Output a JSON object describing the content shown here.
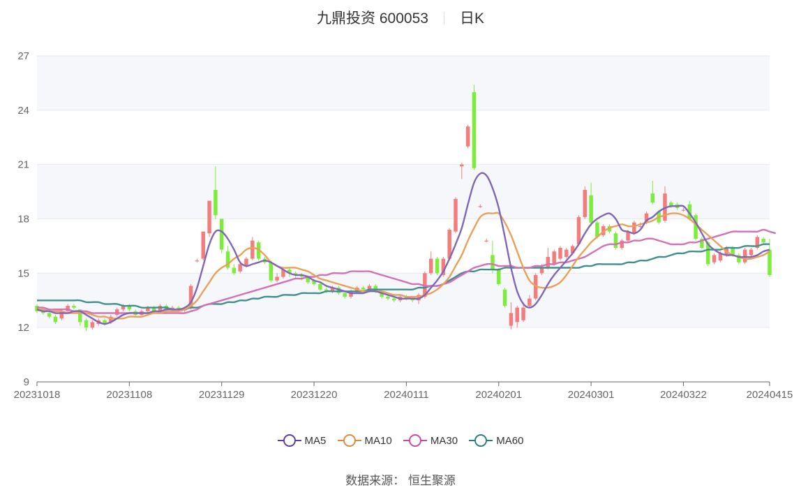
{
  "title": {
    "name": "九鼎投资 600053",
    "period": "日K"
  },
  "source": "数据来源：  恒生聚源",
  "colors": {
    "up": "#f47c7c",
    "down": "#7ced3a",
    "ma5": "#7f66b7",
    "ma10": "#e8a159",
    "ma30": "#d370b8",
    "ma60": "#3f8f8e"
  },
  "legend": [
    {
      "name": "MA5",
      "color": "#5b3ea8"
    },
    {
      "name": "MA10",
      "color": "#e08a3c"
    },
    {
      "name": "MA30",
      "color": "#c94aa6"
    },
    {
      "name": "MA60",
      "color": "#2e7d7c"
    }
  ],
  "chart_data": {
    "type": "candlestick",
    "ylim": [
      9,
      27
    ],
    "yticks": [
      "9",
      "12",
      "15",
      "18",
      "21",
      "24",
      "27"
    ],
    "xtick_labels": [
      {
        "label": "20231018",
        "index": 0
      },
      {
        "label": "20231108",
        "index": 15
      },
      {
        "label": "20231129",
        "index": 30
      },
      {
        "label": "20231220",
        "index": 45
      },
      {
        "label": "20240111",
        "index": 60
      },
      {
        "label": "20240201",
        "index": 75
      },
      {
        "label": "20240301",
        "index": 90
      },
      {
        "label": "20240322",
        "index": 105
      },
      {
        "label": "20240415",
        "index": 119
      }
    ],
    "grid": true,
    "legend_position": "bottom",
    "candles": [
      [
        13.2,
        12.9,
        13.3,
        12.8
      ],
      [
        12.9,
        12.8,
        13.0,
        12.7
      ],
      [
        12.8,
        12.6,
        12.9,
        12.5
      ],
      [
        12.6,
        12.3,
        12.7,
        12.2
      ],
      [
        12.5,
        12.9,
        13.0,
        12.4
      ],
      [
        12.9,
        13.2,
        13.3,
        12.8
      ],
      [
        13.2,
        13.1,
        13.3,
        13.0
      ],
      [
        13.0,
        12.3,
        13.0,
        12.1
      ],
      [
        12.4,
        12.0,
        12.5,
        11.8
      ],
      [
        12.0,
        12.3,
        12.4,
        11.9
      ],
      [
        12.2,
        12.4,
        12.5,
        12.1
      ],
      [
        12.4,
        12.2,
        12.5,
        12.1
      ],
      [
        12.3,
        12.6,
        12.7,
        12.2
      ],
      [
        12.7,
        13.0,
        13.1,
        12.6
      ],
      [
        13.0,
        13.2,
        13.3,
        12.9
      ],
      [
        13.2,
        13.0,
        13.3,
        12.9
      ],
      [
        12.9,
        12.7,
        13.0,
        12.6
      ],
      [
        12.7,
        12.9,
        13.0,
        12.6
      ],
      [
        12.9,
        13.1,
        13.2,
        12.8
      ],
      [
        13.1,
        12.9,
        13.2,
        12.8
      ],
      [
        12.9,
        13.2,
        13.3,
        12.8
      ],
      [
        13.2,
        13.0,
        13.3,
        12.9
      ],
      [
        13.0,
        13.1,
        13.2,
        12.9
      ],
      [
        13.1,
        13.0,
        13.2,
        12.9
      ],
      [
        13.0,
        13.0,
        13.1,
        12.8
      ],
      [
        13.1,
        14.3,
        14.4,
        13.0
      ],
      [
        15.7,
        15.7,
        15.8,
        15.6
      ],
      [
        15.8,
        17.3,
        17.3,
        15.7
      ],
      [
        17.2,
        19.0,
        19.0,
        17.0
      ],
      [
        19.6,
        18.2,
        20.9,
        18.0
      ],
      [
        18.0,
        16.3,
        18.0,
        16.1
      ],
      [
        16.2,
        15.3,
        16.5,
        15.2
      ],
      [
        15.3,
        15.0,
        15.5,
        14.9
      ],
      [
        15.1,
        15.5,
        15.6,
        15.0
      ],
      [
        15.4,
        15.8,
        15.9,
        15.3
      ],
      [
        15.8,
        16.8,
        17.0,
        15.7
      ],
      [
        16.7,
        15.8,
        16.8,
        15.7
      ],
      [
        15.8,
        15.6,
        15.9,
        15.5
      ],
      [
        15.6,
        14.6,
        15.7,
        14.5
      ],
      [
        14.6,
        14.8,
        15.0,
        14.5
      ],
      [
        14.8,
        15.2,
        15.3,
        14.7
      ],
      [
        15.2,
        15.0,
        15.3,
        14.8
      ],
      [
        15.0,
        14.9,
        15.1,
        14.7
      ],
      [
        14.9,
        14.8,
        15.0,
        14.6
      ],
      [
        14.8,
        14.5,
        14.9,
        14.4
      ],
      [
        14.6,
        14.4,
        14.7,
        14.3
      ],
      [
        14.4,
        14.1,
        14.5,
        14.0
      ],
      [
        14.1,
        14.0,
        14.2,
        13.9
      ],
      [
        14.0,
        14.2,
        14.3,
        13.9
      ],
      [
        14.2,
        13.9,
        14.3,
        13.8
      ],
      [
        13.9,
        13.7,
        14.0,
        13.6
      ],
      [
        13.7,
        14.0,
        14.1,
        13.6
      ],
      [
        14.0,
        14.2,
        14.3,
        13.9
      ],
      [
        14.2,
        14.1,
        14.3,
        14.0
      ],
      [
        14.1,
        14.3,
        14.4,
        14.0
      ],
      [
        14.3,
        14.0,
        14.4,
        13.9
      ],
      [
        14.0,
        13.7,
        14.1,
        13.6
      ],
      [
        13.7,
        13.6,
        13.8,
        13.5
      ],
      [
        13.6,
        13.5,
        13.7,
        13.4
      ],
      [
        13.5,
        13.7,
        13.8,
        13.4
      ],
      [
        13.7,
        13.6,
        13.8,
        13.5
      ],
      [
        13.6,
        13.5,
        13.7,
        13.4
      ],
      [
        13.5,
        13.8,
        13.9,
        13.3
      ],
      [
        13.7,
        15.0,
        15.1,
        13.6
      ],
      [
        15.0,
        15.8,
        16.2,
        14.9
      ],
      [
        15.8,
        15.0,
        15.9,
        14.9
      ],
      [
        14.9,
        15.8,
        15.9,
        14.8
      ],
      [
        15.8,
        17.4,
        17.5,
        15.7
      ],
      [
        17.3,
        19.1,
        19.2,
        17.2
      ],
      [
        20.9,
        21.0,
        21.1,
        20.2
      ],
      [
        22.0,
        23.1,
        23.2,
        21.9
      ],
      [
        25.0,
        20.8,
        25.4,
        20.7
      ],
      [
        18.7,
        18.7,
        18.8,
        18.6
      ],
      [
        16.8,
        16.8,
        16.9,
        16.7
      ],
      [
        16.0,
        15.2,
        16.8,
        15.0
      ],
      [
        15.2,
        14.4,
        15.3,
        14.3
      ],
      [
        14.1,
        13.2,
        14.2,
        13.1
      ],
      [
        12.1,
        12.8,
        13.4,
        11.9
      ],
      [
        12.3,
        13.1,
        13.2,
        12.0
      ],
      [
        12.4,
        13.1,
        13.4,
        12.3
      ],
      [
        13.2,
        13.6,
        13.8,
        13.1
      ],
      [
        13.6,
        14.9,
        15.0,
        13.5
      ],
      [
        15.0,
        15.3,
        15.5,
        14.9
      ],
      [
        15.3,
        15.9,
        16.4,
        15.2
      ],
      [
        15.5,
        16.2,
        16.3,
        15.4
      ],
      [
        15.8,
        16.4,
        16.5,
        15.7
      ],
      [
        15.9,
        16.3,
        16.4,
        15.8
      ],
      [
        16.1,
        16.5,
        16.6,
        16.0
      ],
      [
        16.6,
        18.1,
        18.2,
        16.5
      ],
      [
        18.1,
        19.6,
        19.8,
        18.0
      ],
      [
        19.3,
        17.8,
        20.0,
        17.6
      ],
      [
        17.8,
        17.0,
        17.9,
        16.9
      ],
      [
        17.1,
        17.6,
        17.7,
        17.0
      ],
      [
        17.6,
        17.3,
        17.7,
        17.2
      ],
      [
        17.2,
        16.4,
        17.3,
        16.3
      ],
      [
        16.4,
        16.8,
        16.9,
        16.3
      ],
      [
        16.8,
        17.3,
        17.4,
        16.7
      ],
      [
        17.2,
        17.8,
        17.9,
        17.1
      ],
      [
        17.6,
        17.6,
        17.8,
        17.5
      ],
      [
        17.8,
        18.3,
        18.4,
        17.7
      ],
      [
        19.4,
        18.9,
        20.1,
        18.8
      ],
      [
        18.4,
        17.8,
        18.5,
        17.7
      ],
      [
        17.9,
        19.4,
        19.8,
        17.8
      ],
      [
        18.9,
        18.7,
        19.0,
        18.6
      ],
      [
        18.8,
        18.6,
        18.9,
        18.5
      ],
      [
        18.5,
        18.5,
        18.6,
        18.4
      ],
      [
        18.8,
        18.0,
        19.0,
        17.9
      ],
      [
        18.2,
        16.9,
        18.3,
        16.8
      ],
      [
        16.9,
        16.4,
        17.0,
        16.3
      ],
      [
        16.7,
        15.5,
        16.8,
        15.4
      ],
      [
        15.6,
        16.0,
        16.1,
        15.5
      ],
      [
        15.7,
        16.1,
        16.2,
        15.6
      ],
      [
        16.0,
        16.4,
        16.5,
        15.9
      ],
      [
        16.4,
        16.0,
        16.5,
        15.9
      ],
      [
        16.0,
        15.6,
        16.1,
        15.5
      ],
      [
        15.6,
        16.3,
        16.4,
        15.5
      ],
      [
        16.0,
        16.3,
        16.4,
        15.9
      ],
      [
        16.4,
        17.0,
        17.1,
        16.3
      ],
      [
        16.9,
        16.7,
        17.0,
        16.6
      ],
      [
        16.3,
        14.9,
        16.9,
        14.8
      ]
    ],
    "ma5": [
      13.0,
      12.9,
      12.9,
      12.8,
      12.8,
      12.8,
      12.9,
      12.9,
      12.7,
      12.5,
      12.3,
      12.2,
      12.3,
      12.5,
      12.7,
      12.8,
      12.8,
      12.8,
      12.8,
      12.9,
      12.9,
      13.0,
      13.0,
      13.0,
      13.1,
      13.4,
      14.2,
      15.4,
      16.6,
      17.3,
      17.3,
      16.9,
      16.3,
      15.6,
      15.4,
      15.5,
      15.6,
      15.7,
      15.6,
      15.4,
      15.2,
      15.0,
      14.9,
      14.9,
      14.8,
      14.6,
      14.5,
      14.3,
      14.2,
      14.1,
      14.0,
      13.9,
      13.9,
      13.9,
      14.0,
      14.0,
      13.9,
      13.8,
      13.7,
      13.6,
      13.6,
      13.6,
      13.6,
      13.8,
      14.2,
      14.6,
      15.1,
      15.8,
      16.6,
      17.5,
      18.8,
      20.0,
      20.5,
      20.4,
      19.7,
      18.6,
      17.0,
      15.3,
      14.0,
      13.3,
      13.1,
      13.3,
      13.8,
      14.4,
      14.9,
      15.3,
      15.7,
      16.1,
      16.6,
      17.2,
      17.7,
      18.0,
      18.2,
      18.3,
      18.0,
      17.4,
      17.3,
      17.2,
      17.4,
      17.9,
      18.1,
      18.4,
      18.6,
      18.7,
      18.7,
      18.7,
      18.3,
      17.8,
      17.2,
      16.6,
      16.3,
      16.1,
      16.0,
      16.0,
      15.9,
      15.9,
      15.9,
      16.0,
      16.2,
      16.3
    ],
    "ma10": [
      13.0,
      13.0,
      12.9,
      12.9,
      12.9,
      12.8,
      12.8,
      12.8,
      12.8,
      12.7,
      12.6,
      12.6,
      12.5,
      12.5,
      12.5,
      12.6,
      12.6,
      12.6,
      12.7,
      12.8,
      12.8,
      12.9,
      12.9,
      12.9,
      13.0,
      13.2,
      13.5,
      14.0,
      14.5,
      15.0,
      15.3,
      15.5,
      15.8,
      16.0,
      16.3,
      16.4,
      16.3,
      16.0,
      15.6,
      15.4,
      15.3,
      15.3,
      15.3,
      15.2,
      15.1,
      14.9,
      14.7,
      14.6,
      14.5,
      14.4,
      14.3,
      14.2,
      14.1,
      14.0,
      14.0,
      14.0,
      14.0,
      13.9,
      13.8,
      13.8,
      13.7,
      13.7,
      13.7,
      13.8,
      13.9,
      14.1,
      14.4,
      14.8,
      15.4,
      16.0,
      16.8,
      17.5,
      18.1,
      18.3,
      18.3,
      18.3,
      17.8,
      17.1,
      16.2,
      15.3,
      14.6,
      14.3,
      14.2,
      14.2,
      14.3,
      14.5,
      14.9,
      15.4,
      15.9,
      16.3,
      16.7,
      17.0,
      17.3,
      17.5,
      17.6,
      17.7,
      17.6,
      17.6,
      17.7,
      17.8,
      17.9,
      18.1,
      18.2,
      18.3,
      18.3,
      18.2,
      18.0,
      17.7,
      17.4,
      17.1,
      16.8,
      16.5,
      16.2,
      16.0,
      15.9,
      15.8,
      15.8,
      15.9,
      16.0,
      16.2
    ],
    "ma30": [
      13.1,
      13.1,
      13.0,
      13.0,
      13.0,
      13.0,
      12.9,
      12.9,
      12.9,
      12.8,
      12.8,
      12.8,
      12.8,
      12.8,
      12.8,
      12.8,
      12.8,
      12.8,
      12.8,
      12.8,
      12.8,
      12.8,
      12.8,
      12.8,
      12.8,
      12.9,
      13.0,
      13.2,
      13.3,
      13.4,
      13.5,
      13.6,
      13.7,
      13.8,
      13.9,
      14.0,
      14.1,
      14.2,
      14.3,
      14.4,
      14.5,
      14.6,
      14.7,
      14.7,
      14.8,
      14.8,
      14.9,
      14.9,
      15.0,
      15.0,
      15.0,
      15.1,
      15.1,
      15.1,
      15.1,
      15.0,
      14.9,
      14.8,
      14.7,
      14.6,
      14.5,
      14.4,
      14.4,
      14.3,
      14.3,
      14.3,
      14.4,
      14.5,
      14.7,
      14.9,
      15.1,
      15.3,
      15.4,
      15.5,
      15.5,
      15.4,
      15.4,
      15.4,
      15.3,
      15.3,
      15.3,
      15.4,
      15.4,
      15.5,
      15.5,
      15.6,
      15.6,
      15.7,
      15.8,
      15.9,
      16.1,
      16.3,
      16.5,
      16.6,
      16.6,
      16.7,
      16.7,
      16.8,
      16.8,
      16.9,
      16.9,
      16.8,
      16.7,
      16.6,
      16.6,
      16.6,
      16.7,
      16.7,
      16.8,
      16.9,
      17.0,
      17.1,
      17.2,
      17.3,
      17.3,
      17.3,
      17.3,
      17.3,
      17.4,
      17.3,
      17.2
    ],
    "ma60": [
      13.5,
      13.5,
      13.5,
      13.5,
      13.5,
      13.5,
      13.5,
      13.5,
      13.4,
      13.4,
      13.4,
      13.3,
      13.3,
      13.3,
      13.2,
      13.2,
      13.2,
      13.1,
      13.1,
      13.1,
      13.1,
      13.1,
      13.0,
      13.0,
      13.0,
      13.1,
      13.1,
      13.2,
      13.3,
      13.3,
      13.3,
      13.4,
      13.4,
      13.5,
      13.5,
      13.6,
      13.6,
      13.7,
      13.7,
      13.7,
      13.8,
      13.8,
      13.8,
      13.9,
      13.9,
      13.9,
      13.9,
      14.0,
      14.0,
      14.0,
      14.0,
      14.0,
      14.0,
      14.0,
      14.1,
      14.1,
      14.1,
      14.1,
      14.1,
      14.1,
      14.1,
      14.1,
      14.2,
      14.2,
      14.3,
      14.3,
      14.4,
      14.6,
      14.8,
      15.0,
      15.1,
      15.1,
      15.2,
      15.2,
      15.2,
      15.2,
      15.3,
      15.3,
      15.3,
      15.3,
      15.3,
      15.3,
      15.3,
      15.3,
      15.3,
      15.3,
      15.3,
      15.3,
      15.3,
      15.4,
      15.4,
      15.5,
      15.5,
      15.5,
      15.5,
      15.5,
      15.6,
      15.6,
      15.7,
      15.7,
      15.8,
      15.9,
      15.9,
      16.0,
      16.1,
      16.1,
      16.2,
      16.2,
      16.2,
      16.3,
      16.3,
      16.3,
      16.4,
      16.4,
      16.4,
      16.5,
      16.5,
      16.5,
      16.6,
      16.6
    ]
  }
}
